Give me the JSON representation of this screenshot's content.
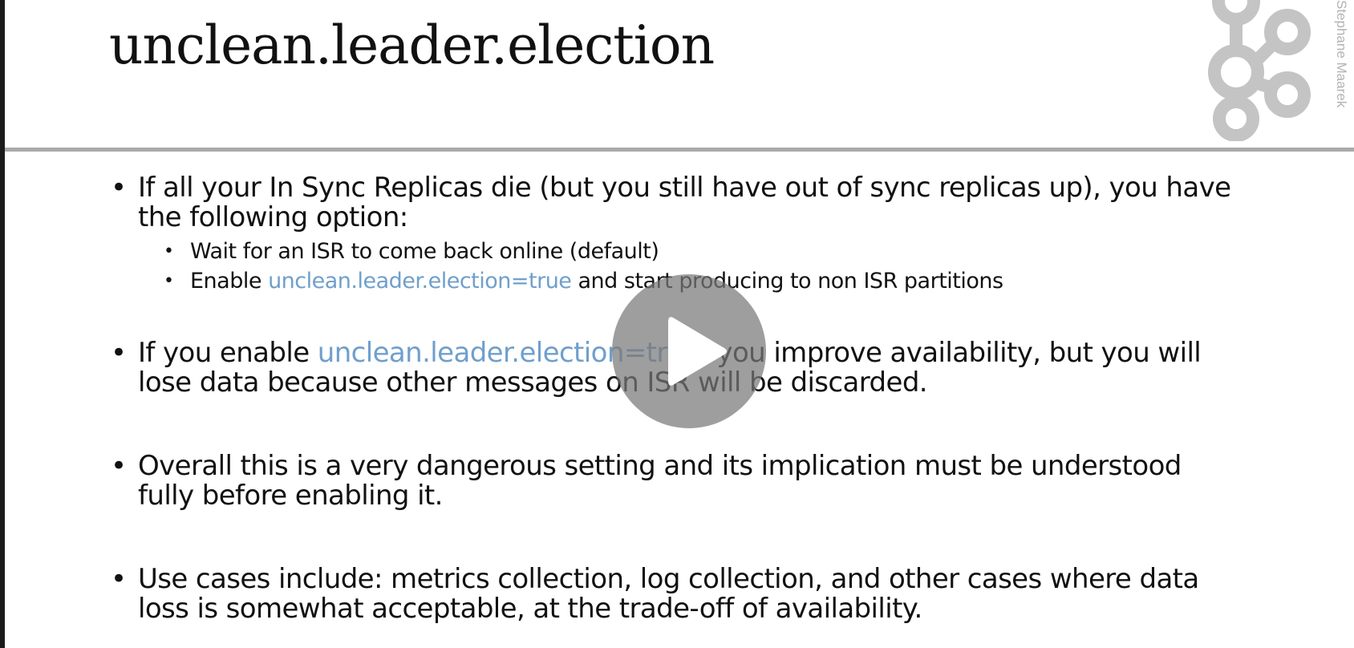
{
  "slide": {
    "title": "unclean.leader.election",
    "author_watermark": "Stephane Maarek"
  },
  "bullets": [
    {
      "line1": "If all your In Sync Replicas die (but you still have out of sync replicas up), you have",
      "line2": "the following option:"
    },
    {
      "pre": "If you enable ",
      "code": "unclean.leader.election=true",
      "post": ", you improve availability, but you will",
      "line2": "lose data because other messages on ISR will be discarded."
    },
    {
      "line1": "Overall this is a very dangerous setting and its implication must be understood",
      "line2": "fully before enabling it."
    },
    {
      "line1": "Use cases include: metrics collection, log collection, and other cases where data",
      "line2": "loss is somewhat acceptable, at the trade-off of availability."
    }
  ],
  "sub_bullets": [
    {
      "text": "Wait for an ISR to come back online (default)"
    },
    {
      "pre": "Enable ",
      "code": "unclean.leader.election=true",
      "post": " and start producing to non ISR partitions"
    }
  ],
  "player": {
    "play_icon": "play-icon",
    "overlay_color": "#787878"
  },
  "colors": {
    "code_text": "#6f9fcc",
    "header_rule": "#a9a9a9",
    "logo": "#c4c4c4"
  }
}
